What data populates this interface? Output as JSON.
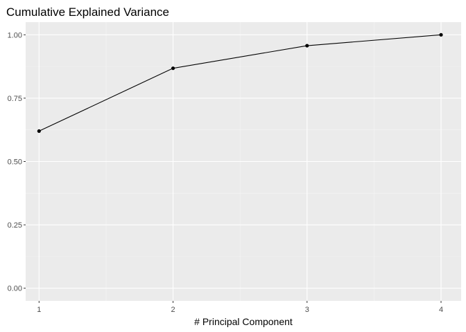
{
  "chart_data": {
    "type": "line",
    "title": "Cumulative Explained Variance",
    "xlabel": "# Principal Component",
    "ylabel": "",
    "x": [
      1,
      2,
      3,
      4
    ],
    "x_tick_labels": [
      "1",
      "2",
      "3",
      "4"
    ],
    "y_tick_values": [
      0.0,
      0.25,
      0.5,
      0.75,
      1.0
    ],
    "y_tick_labels": [
      "0.00",
      "0.25",
      "0.50",
      "0.75",
      "1.00"
    ],
    "series": [
      {
        "values": [
          0.62,
          0.868,
          0.957,
          1.0
        ]
      }
    ],
    "xlim": [
      0.9,
      4.15
    ],
    "ylim": [
      -0.05,
      1.05
    ],
    "grid": true,
    "legend": "none",
    "colors": {
      "panel_background": "#ebebeb",
      "grid_major": "#ffffff",
      "grid_minor": "#f5f5f5",
      "line": "#000000",
      "points": "#000000"
    }
  }
}
